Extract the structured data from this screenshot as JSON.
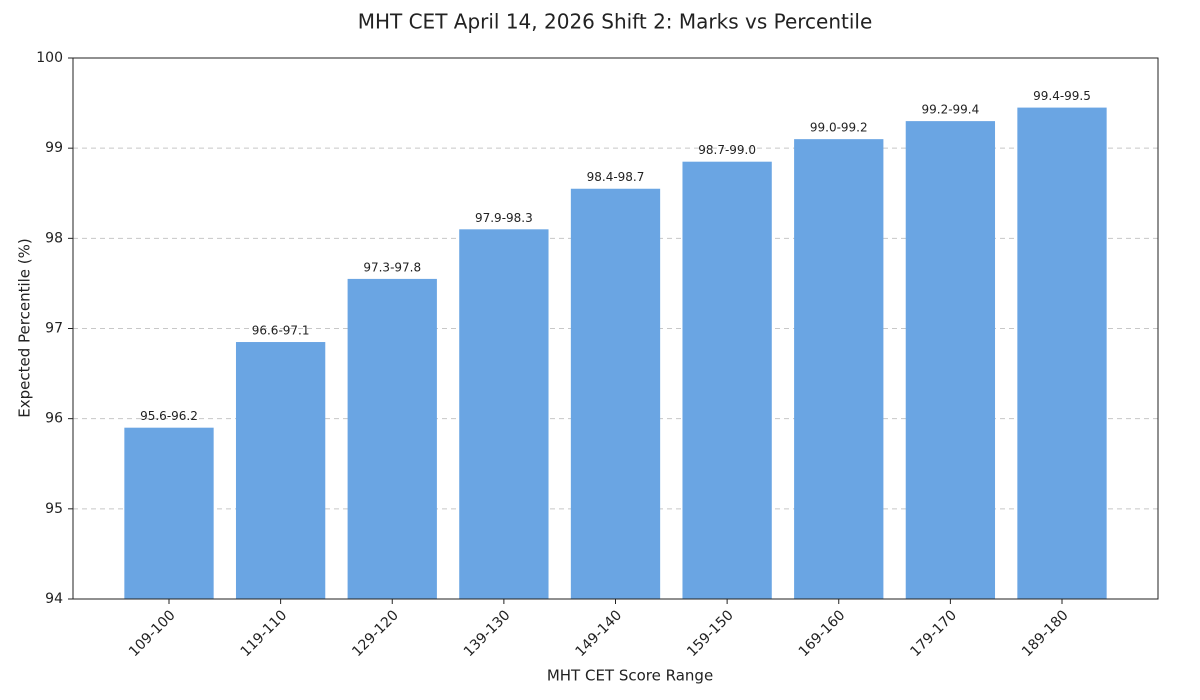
{
  "chart_data": {
    "type": "bar",
    "title": "MHT CET April 14, 2026 Shift 2: Marks vs Percentile",
    "xlabel": "MHT CET Score Range",
    "ylabel": "Expected Percentile (%)",
    "categories": [
      "109-100",
      "119-110",
      "129-120",
      "139-130",
      "149-140",
      "159-150",
      "169-160",
      "179-170",
      "189-180"
    ],
    "values": [
      95.9,
      96.85,
      97.55,
      98.1,
      98.55,
      98.85,
      99.1,
      99.3,
      99.45
    ],
    "value_labels": [
      "95.6-96.2",
      "96.6-97.1",
      "97.3-97.8",
      "97.9-98.3",
      "98.4-98.7",
      "98.7-99.0",
      "99.0-99.2",
      "99.2-99.4",
      "99.4-99.5"
    ],
    "color": "#6aa5e3",
    "ylim": [
      94,
      100
    ],
    "yticks": [
      94,
      95,
      96,
      97,
      98,
      99,
      100
    ],
    "grid": true
  }
}
